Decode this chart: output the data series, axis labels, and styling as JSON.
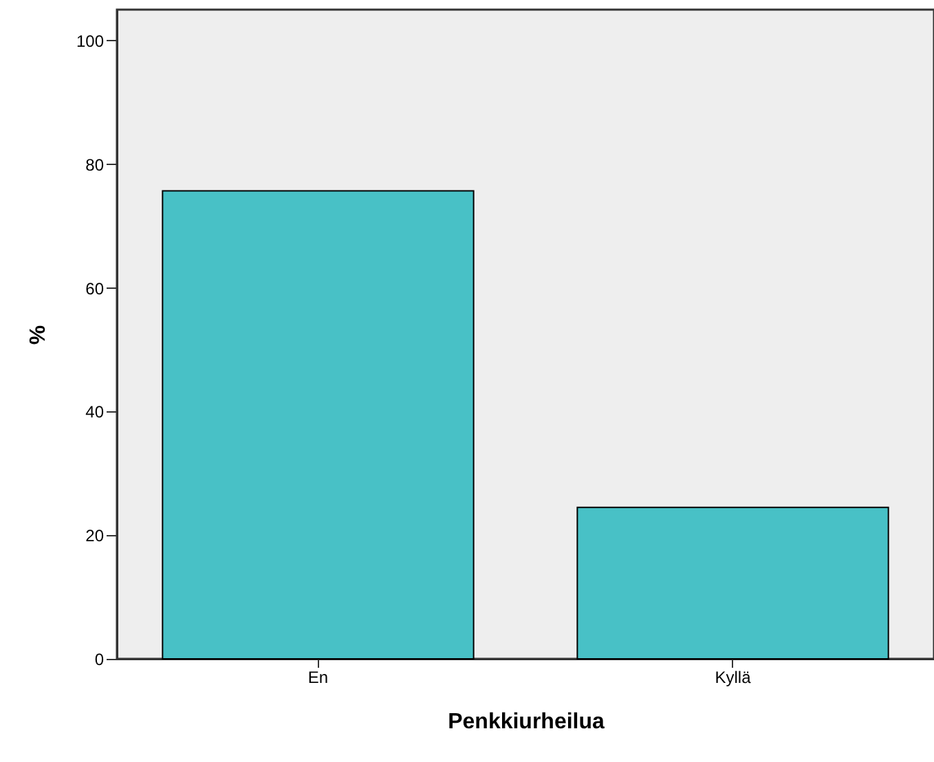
{
  "chart_data": {
    "type": "bar",
    "xlabel": "Penkkiurheilua",
    "ylabel": "%",
    "categories": [
      "En",
      "Kyllä"
    ],
    "values": [
      75.7,
      24.5
    ],
    "color": "#48c1c6",
    "ylim": [
      0,
      105
    ],
    "yticks": [
      0,
      20,
      40,
      60,
      80,
      100
    ],
    "grid": false
  }
}
